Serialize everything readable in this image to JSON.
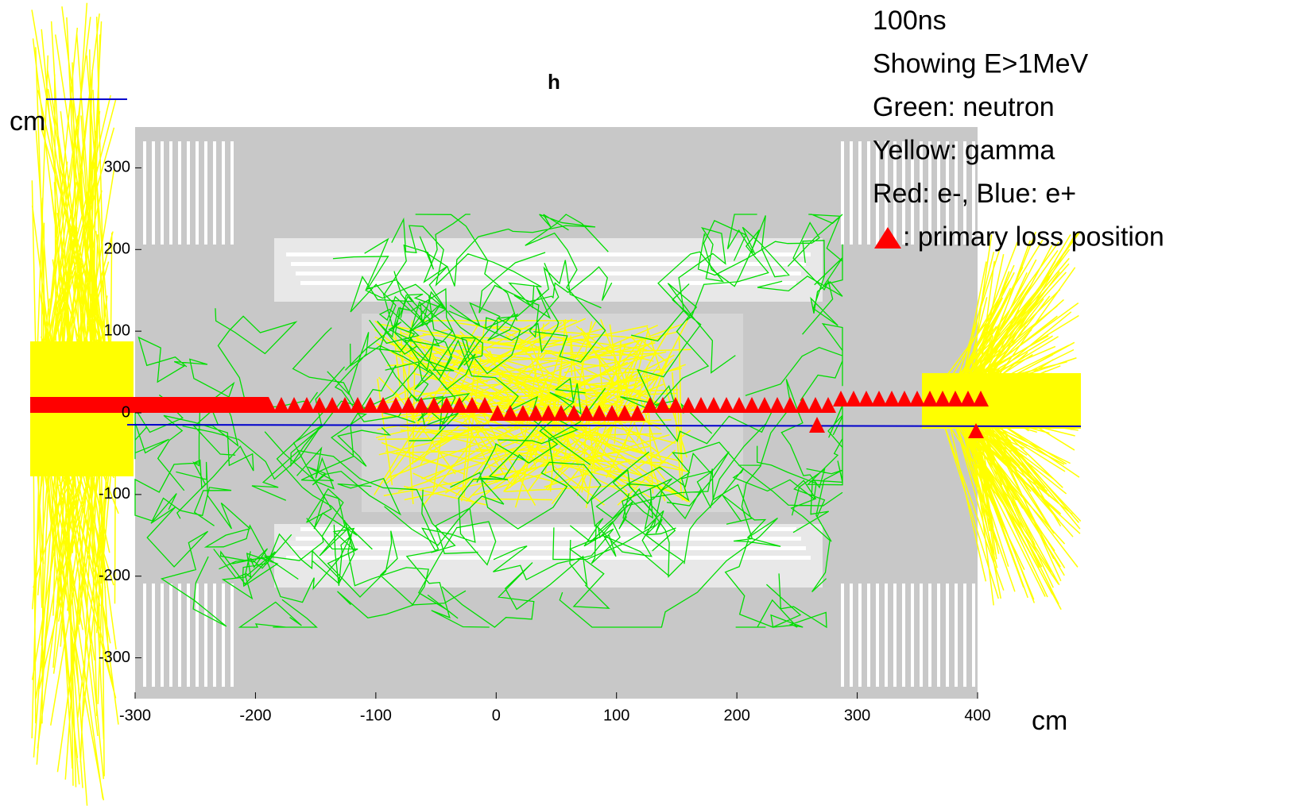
{
  "chart_data": {
    "type": "event-display",
    "title": "h",
    "x_label": "cm",
    "y_label": "cm",
    "xlim": [
      -300,
      400
    ],
    "ylim": [
      -350,
      350
    ],
    "xticks": [
      -300,
      -200,
      -100,
      0,
      100,
      200,
      300,
      400
    ],
    "yticks": [
      -300,
      -200,
      -100,
      0,
      100,
      200,
      300
    ],
    "annotations": [
      "100ns",
      "Showing E>1MeV",
      "Green: neutron",
      "Yellow: gamma",
      "Red: e-, Blue: e+",
      ": primary loss position"
    ]
  }
}
